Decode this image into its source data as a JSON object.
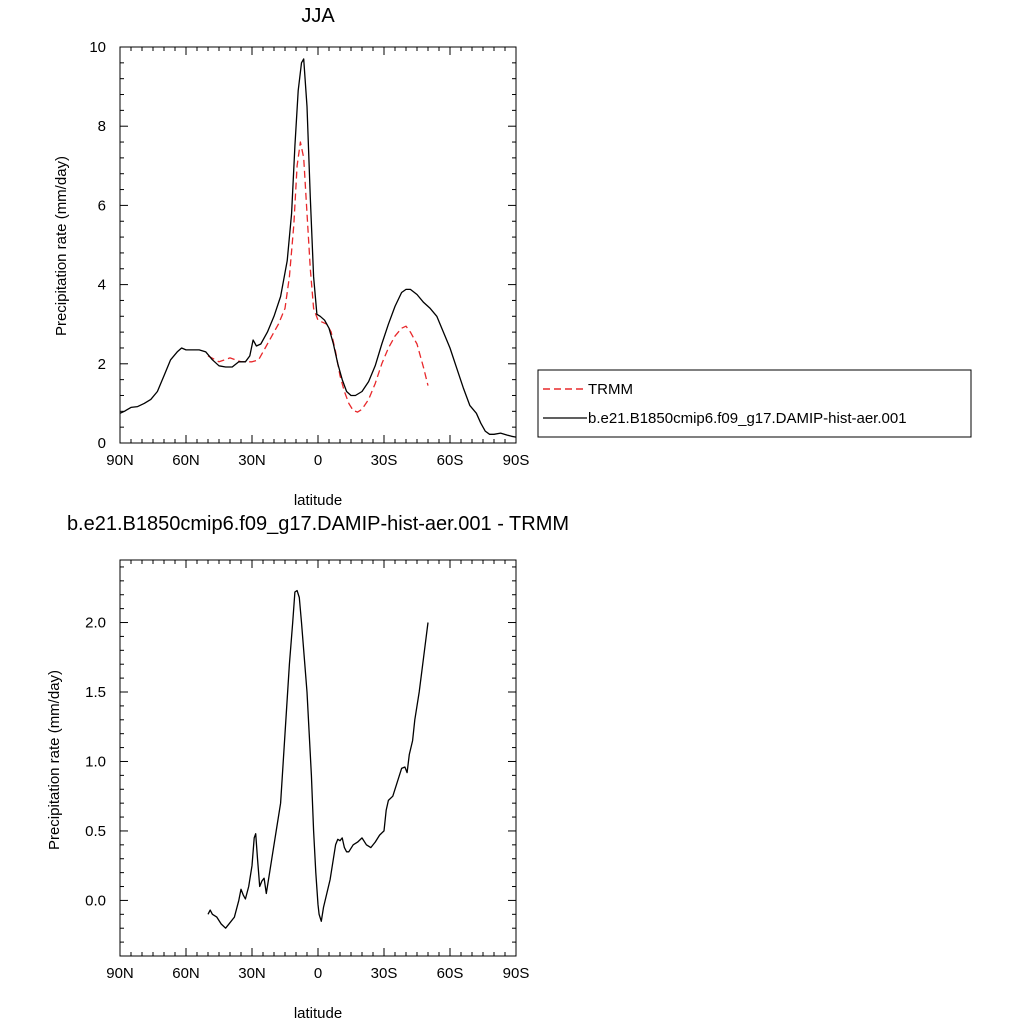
{
  "chart_data": [
    {
      "type": "line",
      "title": "JJA",
      "xlabel": "latitude",
      "ylabel": "Precipitation rate (mm/day)",
      "xlim": [
        90,
        -90
      ],
      "ylim": [
        0,
        10
      ],
      "x_ticks": [
        90,
        60,
        30,
        0,
        -30,
        -60,
        -90
      ],
      "x_tick_labels": [
        "90N",
        "60N",
        "30N",
        "0",
        "30S",
        "60S",
        "90S"
      ],
      "y_ticks": [
        0,
        2,
        4,
        6,
        8,
        10
      ],
      "y_tick_labels": [
        "0",
        "2",
        "4",
        "6",
        "8",
        "10"
      ],
      "legend_position": "right",
      "series": [
        {
          "name": "TRMM",
          "color": "#e8282b",
          "dash": "dashed",
          "points": [
            [
              50,
              2.2
            ],
            [
              45,
              2.05
            ],
            [
              40,
              2.15
            ],
            [
              35,
              2.05
            ],
            [
              30,
              2.05
            ],
            [
              27,
              2.1
            ],
            [
              24,
              2.4
            ],
            [
              21,
              2.7
            ],
            [
              18,
              3.0
            ],
            [
              15,
              3.4
            ],
            [
              13,
              4.2
            ],
            [
              11,
              5.5
            ],
            [
              9.5,
              7.0
            ],
            [
              8,
              7.6
            ],
            [
              6.5,
              7.2
            ],
            [
              5,
              5.8
            ],
            [
              3.5,
              4.4
            ],
            [
              2,
              3.4
            ],
            [
              0,
              3.1
            ],
            [
              -2,
              3.05
            ],
            [
              -4,
              3.0
            ],
            [
              -6,
              2.8
            ],
            [
              -8,
              2.3
            ],
            [
              -10,
              1.7
            ],
            [
              -12,
              1.3
            ],
            [
              -14,
              1.0
            ],
            [
              -16,
              0.82
            ],
            [
              -18,
              0.78
            ],
            [
              -20,
              0.85
            ],
            [
              -23,
              1.1
            ],
            [
              -26,
              1.5
            ],
            [
              -29,
              2.0
            ],
            [
              -32,
              2.4
            ],
            [
              -35,
              2.7
            ],
            [
              -38,
              2.9
            ],
            [
              -40,
              2.95
            ],
            [
              -42,
              2.8
            ],
            [
              -45,
              2.5
            ],
            [
              -48,
              1.9
            ],
            [
              -50,
              1.45
            ]
          ]
        },
        {
          "name": "b.e21.B1850cmip6.f09_g17.DAMIP-hist-aer.001",
          "color": "#000000",
          "dash": "solid",
          "points": [
            [
              90,
              0.75
            ],
            [
              88,
              0.8
            ],
            [
              85,
              0.9
            ],
            [
              82,
              0.92
            ],
            [
              79,
              1.0
            ],
            [
              76,
              1.1
            ],
            [
              73,
              1.3
            ],
            [
              70,
              1.7
            ],
            [
              67,
              2.1
            ],
            [
              64,
              2.3
            ],
            [
              62,
              2.4
            ],
            [
              60,
              2.35
            ],
            [
              57,
              2.35
            ],
            [
              54,
              2.35
            ],
            [
              51,
              2.3
            ],
            [
              48,
              2.1
            ],
            [
              45,
              1.95
            ],
            [
              42,
              1.92
            ],
            [
              39,
              1.92
            ],
            [
              36,
              2.05
            ],
            [
              33,
              2.05
            ],
            [
              31,
              2.2
            ],
            [
              29.5,
              2.6
            ],
            [
              28,
              2.45
            ],
            [
              26,
              2.5
            ],
            [
              23,
              2.8
            ],
            [
              20,
              3.2
            ],
            [
              17,
              3.7
            ],
            [
              14,
              4.6
            ],
            [
              12,
              5.8
            ],
            [
              10.5,
              7.5
            ],
            [
              9,
              8.9
            ],
            [
              7.5,
              9.6
            ],
            [
              6.5,
              9.7
            ],
            [
              5,
              8.5
            ],
            [
              3.5,
              6.2
            ],
            [
              2,
              4.2
            ],
            [
              0.5,
              3.25
            ],
            [
              -1,
              3.2
            ],
            [
              -3,
              3.1
            ],
            [
              -5,
              2.9
            ],
            [
              -7,
              2.5
            ],
            [
              -9,
              2.0
            ],
            [
              -11,
              1.6
            ],
            [
              -13,
              1.3
            ],
            [
              -15,
              1.2
            ],
            [
              -17,
              1.2
            ],
            [
              -20,
              1.3
            ],
            [
              -23,
              1.55
            ],
            [
              -26,
              1.95
            ],
            [
              -29,
              2.5
            ],
            [
              -32,
              3.0
            ],
            [
              -35,
              3.45
            ],
            [
              -38,
              3.8
            ],
            [
              -40,
              3.88
            ],
            [
              -42,
              3.88
            ],
            [
              -45,
              3.75
            ],
            [
              -48,
              3.55
            ],
            [
              -51,
              3.4
            ],
            [
              -54,
              3.2
            ],
            [
              -57,
              2.8
            ],
            [
              -60,
              2.4
            ],
            [
              -63,
              1.9
            ],
            [
              -66,
              1.4
            ],
            [
              -69,
              0.95
            ],
            [
              -72,
              0.75
            ],
            [
              -74,
              0.5
            ],
            [
              -76,
              0.3
            ],
            [
              -78,
              0.22
            ],
            [
              -80,
              0.22
            ],
            [
              -83,
              0.25
            ],
            [
              -86,
              0.2
            ],
            [
              -88,
              0.17
            ],
            [
              -90,
              0.15
            ]
          ]
        }
      ]
    },
    {
      "type": "line",
      "title": "b.e21.B1850cmip6.f09_g17.DAMIP-hist-aer.001 - TRMM",
      "xlabel": "latitude",
      "ylabel": "Precipitation rate (mm/day)",
      "xlim": [
        90,
        -90
      ],
      "ylim": [
        -0.4,
        2.45
      ],
      "x_ticks": [
        90,
        60,
        30,
        0,
        -30,
        -60,
        -90
      ],
      "x_tick_labels": [
        "90N",
        "60N",
        "30N",
        "0",
        "30S",
        "60S",
        "90S"
      ],
      "y_ticks": [
        0.0,
        0.5,
        1.0,
        1.5,
        2.0
      ],
      "y_tick_labels": [
        "0.0",
        "0.5",
        "1.0",
        "1.5",
        "2.0"
      ],
      "series": [
        {
          "color": "#000000",
          "dash": "solid",
          "points": [
            [
              50,
              -0.1
            ],
            [
              49,
              -0.07
            ],
            [
              48,
              -0.1
            ],
            [
              46,
              -0.12
            ],
            [
              44,
              -0.17
            ],
            [
              42,
              -0.2
            ],
            [
              40,
              -0.16
            ],
            [
              38,
              -0.12
            ],
            [
              36,
              0.0
            ],
            [
              35,
              0.08
            ],
            [
              34,
              0.04
            ],
            [
              33,
              0.01
            ],
            [
              31.5,
              0.1
            ],
            [
              30,
              0.25
            ],
            [
              29,
              0.45
            ],
            [
              28.3,
              0.48
            ],
            [
              27.5,
              0.3
            ],
            [
              26.5,
              0.1
            ],
            [
              25.5,
              0.14
            ],
            [
              24.5,
              0.16
            ],
            [
              23.5,
              0.05
            ],
            [
              22.5,
              0.15
            ],
            [
              21,
              0.3
            ],
            [
              19,
              0.5
            ],
            [
              17,
              0.7
            ],
            [
              15,
              1.2
            ],
            [
              13,
              1.7
            ],
            [
              11.5,
              2.0
            ],
            [
              10.5,
              2.22
            ],
            [
              9.5,
              2.23
            ],
            [
              8.5,
              2.18
            ],
            [
              7.5,
              2.0
            ],
            [
              6,
              1.7
            ],
            [
              5,
              1.5
            ],
            [
              4,
              1.2
            ],
            [
              3,
              0.9
            ],
            [
              2,
              0.5
            ],
            [
              1,
              0.2
            ],
            [
              0,
              -0.03
            ],
            [
              -0.5,
              -0.1
            ],
            [
              -1.5,
              -0.15
            ],
            [
              -2.5,
              -0.05
            ],
            [
              -4,
              0.05
            ],
            [
              -5.5,
              0.15
            ],
            [
              -7,
              0.3
            ],
            [
              -8,
              0.4
            ],
            [
              -9,
              0.44
            ],
            [
              -10,
              0.43
            ],
            [
              -11,
              0.45
            ],
            [
              -12,
              0.38
            ],
            [
              -13,
              0.35
            ],
            [
              -14,
              0.35
            ],
            [
              -16,
              0.4
            ],
            [
              -18,
              0.42
            ],
            [
              -20,
              0.45
            ],
            [
              -22,
              0.4
            ],
            [
              -24,
              0.38
            ],
            [
              -26,
              0.42
            ],
            [
              -28,
              0.47
            ],
            [
              -30,
              0.5
            ],
            [
              -31,
              0.65
            ],
            [
              -32,
              0.72
            ],
            [
              -34,
              0.75
            ],
            [
              -36,
              0.85
            ],
            [
              -38,
              0.95
            ],
            [
              -39.5,
              0.96
            ],
            [
              -40.5,
              0.92
            ],
            [
              -41.5,
              1.05
            ],
            [
              -43,
              1.15
            ],
            [
              -44,
              1.3
            ],
            [
              -46,
              1.5
            ],
            [
              -48,
              1.75
            ],
            [
              -50,
              2.0
            ]
          ]
        }
      ]
    }
  ]
}
